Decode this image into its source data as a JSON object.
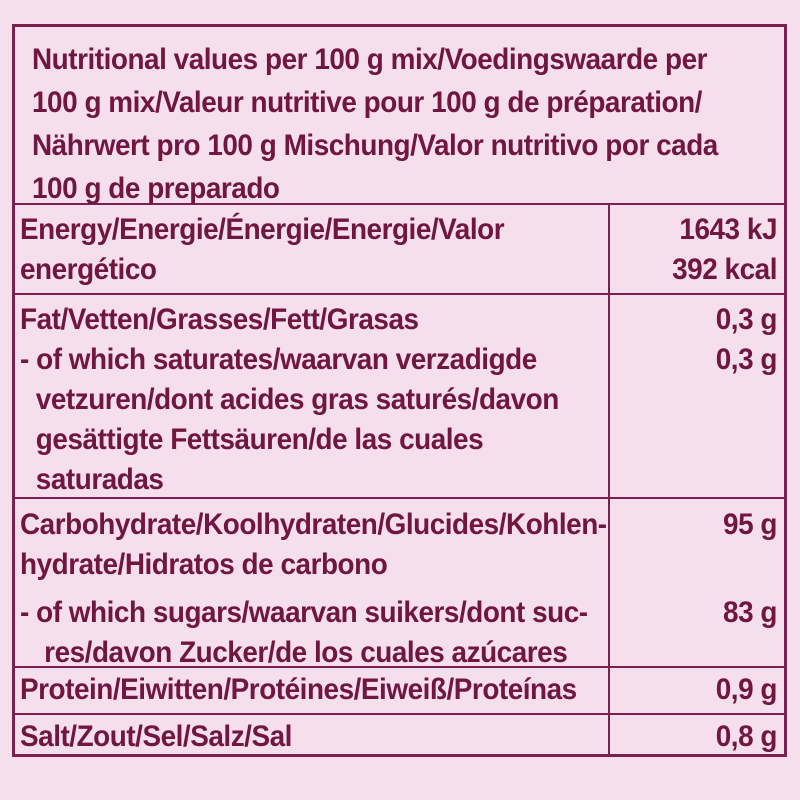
{
  "meta": {
    "kind": "nutrition-facts-label",
    "colors": {
      "background": "#f6dfed",
      "text": "#701640",
      "border": "#7c2050"
    }
  },
  "header": {
    "full_text": "Nutritional values per 100 g mix/Voedingswaarde per 100 g mix/Valeur nutritive pour 100 g de préparation/Nährwert pro 100 g Mischung/Valor nutritivo por cada 100 g de preparado",
    "lines": [
      "Nutritional values per 100 g mix/Voedingswaarde per",
      "100 g mix/Valeur nutritive pour 100 g de préparation/",
      "Nährwert pro 100 g Mischung/Valor nutritivo por cada",
      "100 g de preparado"
    ]
  },
  "rows": {
    "energy": {
      "label_full": "Energy/Energie/Énergie/Energie/Valor energético",
      "label_lines": [
        "Energy/Energie/Énergie/Energie/Valor",
        "energético"
      ],
      "value_lines": [
        "1643 kJ",
        "392 kcal"
      ]
    },
    "fat": {
      "label_full": "Fat/Vetten/Grasses/Fett/Grasas",
      "label_lines": [
        "Fat/Vetten/Grasses/Fett/Grasas"
      ],
      "sub_full": "- of which saturates/waarvan verzadigde vetzuren/dont acides gras saturés/davon gesättigte Fettsäuren/de las cuales saturadas",
      "sub_lines": [
        "- of which saturates/waarvan verzadigde",
        "vetzuren/dont acides gras saturés/davon",
        "gesättigte Fettsäuren/de las cuales",
        "saturadas"
      ],
      "value_total": "0,3 g",
      "value_saturates": "0,3 g"
    },
    "carbohydrate": {
      "label_full": "Carbohydrate/Koolhydraten/Glucides/Kohlenhydrate/Hidratos de carbono",
      "label_lines": [
        "Carbohydrate/Koolhydraten/Glucides/Kohlen-",
        "hydrate/Hidratos de carbono"
      ],
      "sub_full": "- of which sugars/waarvan suikers/dont sucres/davon Zucker/de los cuales azúcares",
      "sub_lines": [
        "- of which sugars/waarvan suikers/dont suc-",
        "res/davon Zucker/de los cuales azúcares"
      ],
      "value_total": "95 g",
      "value_sugars": "83 g"
    },
    "protein": {
      "label_full": "Protein/Eiwitten/Protéines/Eiweiß/Proteínas",
      "value": "0,9 g"
    },
    "salt": {
      "label_full": "Salt/Zout/Sel/Salz/Sal",
      "value": "0,8 g"
    }
  }
}
